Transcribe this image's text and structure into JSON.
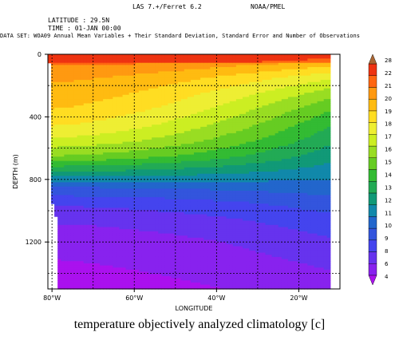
{
  "header": {
    "software": "LAS 7.+/Ferret 6.2",
    "org": "NOAA/PMEL",
    "latitude": "LATITUDE : 29.5N",
    "time": "TIME : 01-JAN 00:00",
    "dataset": "DATA SET: WOA09 Annual Mean Variables + Their Standard Deviation, Standard Error and Number of Observations"
  },
  "caption": "temperature objectively analyzed climatology [c]",
  "chart_data": {
    "type": "heatmap",
    "title": "temperature objectively analyzed climatology [c]",
    "xlabel": "LONGITUDE",
    "ylabel": "DEPTH (m)",
    "xlim": [
      -81,
      -10
    ],
    "ylim": [
      1500,
      0
    ],
    "x_ticks": [
      -80,
      -60,
      -40,
      -20
    ],
    "x_tick_labels": [
      "80°W",
      "60°W",
      "40°W",
      "20°W"
    ],
    "y_ticks": [
      0,
      400,
      800,
      1200
    ],
    "y_tick_labels": [
      "0",
      "400",
      "800",
      "1200"
    ],
    "grid": true,
    "colorbar": {
      "levels": [
        4,
        5,
        6,
        7,
        8,
        9,
        10,
        11,
        12,
        13,
        14,
        15,
        16,
        17,
        18,
        19,
        20,
        21,
        22,
        28
      ],
      "tick_labels": [
        "4",
        "6",
        "8",
        "9",
        "10",
        "11",
        "12",
        "13",
        "14",
        "15",
        "16",
        "17",
        "18",
        "19",
        "20",
        "21",
        "22",
        "28"
      ],
      "colors": [
        "#aa11ee",
        "#8822ee",
        "#6633ee",
        "#4444ee",
        "#3355dd",
        "#2266cc",
        "#1188aa",
        "#119977",
        "#22aa55",
        "#33bb33",
        "#66cc22",
        "#99dd22",
        "#ccee22",
        "#eeee33",
        "#ffdd22",
        "#ffbb11",
        "#ff9911",
        "#ff6611",
        "#ee3311",
        "#aa6633"
      ]
    },
    "temperature_profile": {
      "depth": [
        0,
        25,
        75,
        150,
        250,
        350,
        450,
        550,
        650,
        750,
        850,
        950,
        1050,
        1200,
        1350,
        1500
      ],
      "west_temp": [
        24,
        22,
        21,
        20.2,
        19.6,
        19,
        18.1,
        16.8,
        15,
        12,
        9,
        7.2,
        6.2,
        5.3,
        4.9,
        4.5
      ],
      "east_temp": [
        22,
        20.5,
        19,
        17,
        15.2,
        13.8,
        12.8,
        12,
        11.2,
        10.4,
        9.6,
        8.6,
        7.8,
        6.9,
        6.2,
        5.6
      ]
    },
    "seafloor_depth": [
      {
        "lon": -80.5,
        "depth": 60
      },
      {
        "lon": -80,
        "depth": 850
      },
      {
        "lon": -79.5,
        "depth": 950
      },
      {
        "lon": -79,
        "depth": 1030
      },
      {
        "lon": -78.5,
        "depth": 1080
      },
      {
        "lon": -78,
        "depth": 1500
      }
    ]
  }
}
